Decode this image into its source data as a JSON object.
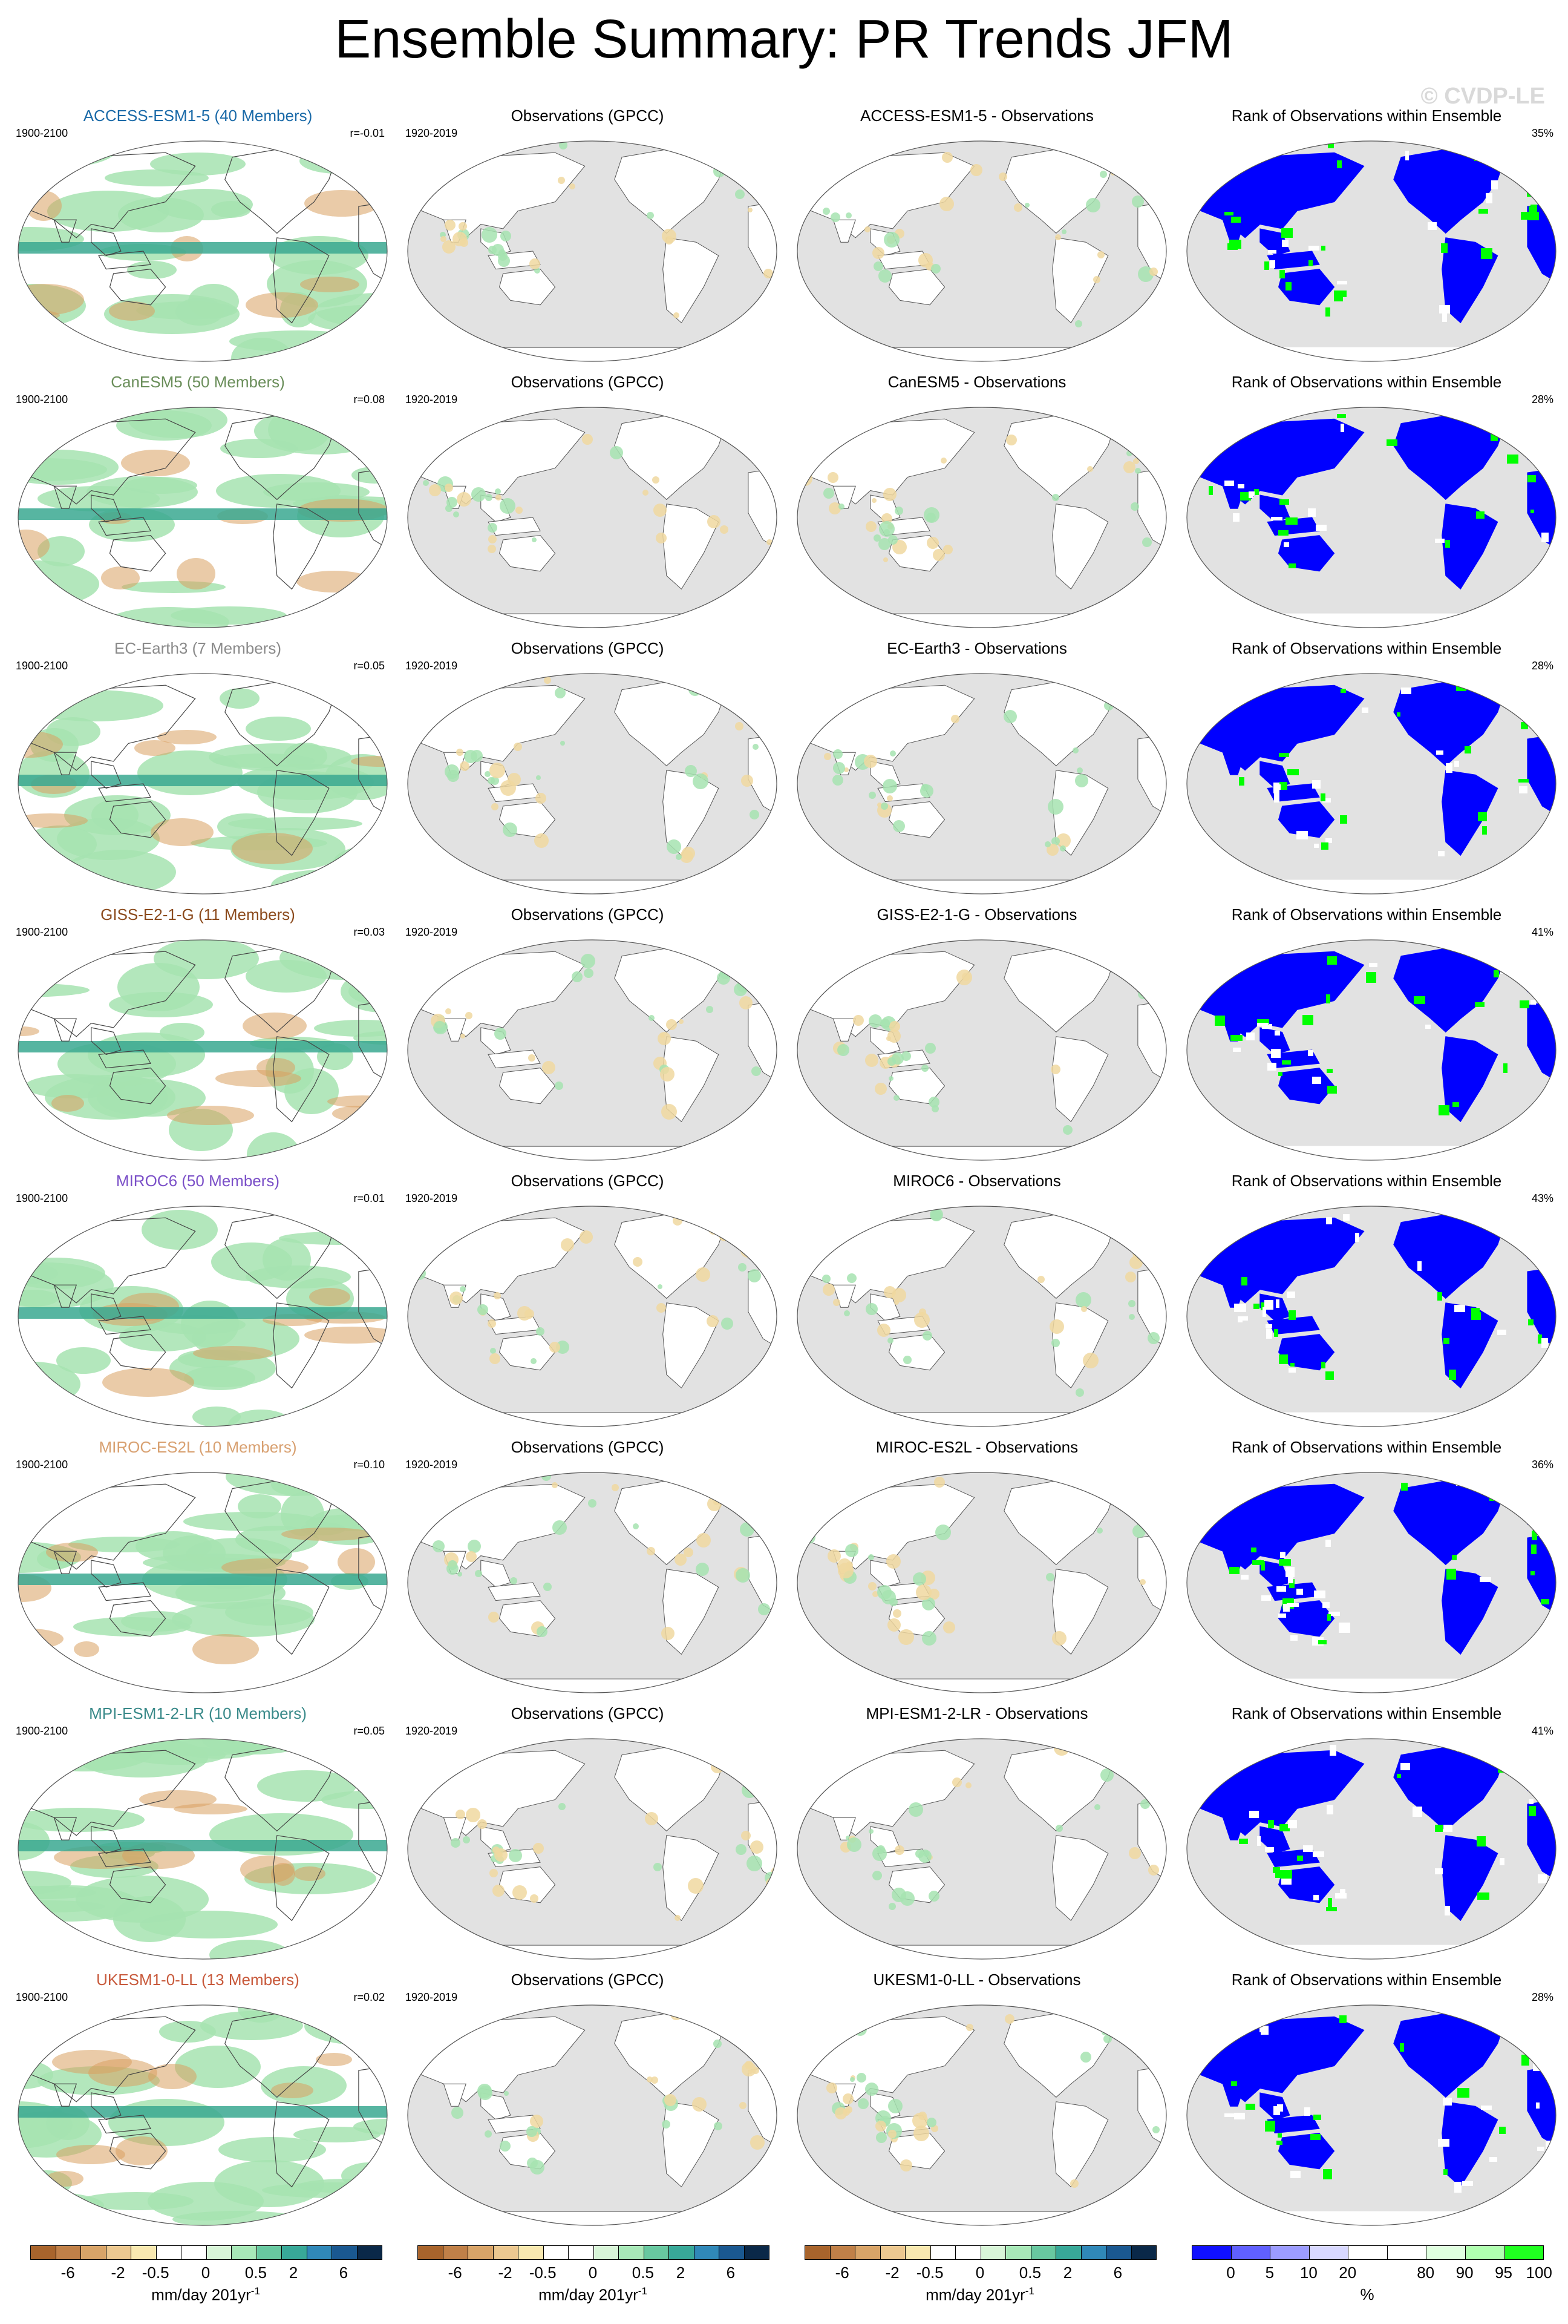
{
  "title": "Ensemble Summary: PR Trends JFM",
  "copyright": "© CVDP-LE",
  "obs_title": "Observations (GPCC)",
  "obs_period": "1920-2019",
  "model_period": "1900-2100",
  "rank_title": "Rank of Observations within Ensemble",
  "rows": [
    {
      "model_title": "ACCESS-ESM1-5 (40 Members)",
      "model_color": "#1a6aa8",
      "r": "r=-0.01",
      "diff_title": "ACCESS-ESM1-5 - Observations",
      "rank_pct": "35%"
    },
    {
      "model_title": "CanESM5 (50 Members)",
      "model_color": "#6a8e5a",
      "r": "r=0.08",
      "diff_title": "CanESM5 - Observations",
      "rank_pct": "28%"
    },
    {
      "model_title": "EC-Earth3 (7 Members)",
      "model_color": "#8a8a8a",
      "r": "r=0.05",
      "diff_title": "EC-Earth3 - Observations",
      "rank_pct": "28%"
    },
    {
      "model_title": "GISS-E2-1-G (11 Members)",
      "model_color": "#8b4a1c",
      "r": "r=0.03",
      "diff_title": "GISS-E2-1-G - Observations",
      "rank_pct": "41%"
    },
    {
      "model_title": "MIROC6 (50 Members)",
      "model_color": "#7b50c8",
      "r": "r=0.01",
      "diff_title": "MIROC6 - Observations",
      "rank_pct": "43%"
    },
    {
      "model_title": "MIROC-ES2L (10 Members)",
      "model_color": "#d8a070",
      "r": "r=0.10",
      "diff_title": "MIROC-ES2L - Observations",
      "rank_pct": "36%"
    },
    {
      "model_title": "MPI-ESM1-2-LR (10 Members)",
      "model_color": "#3a8a8a",
      "r": "r=0.05",
      "diff_title": "MPI-ESM1-2-LR - Observations",
      "rank_pct": "41%"
    },
    {
      "model_title": "UKESM1-0-LL (13 Members)",
      "model_color": "#c85a3c",
      "r": "r=0.02",
      "diff_title": "UKESM1-0-LL - Observations",
      "rank_pct": "28%"
    }
  ],
  "trend_colorbar": {
    "colors": [
      "#a8642c",
      "#c08048",
      "#d8a468",
      "#ecc890",
      "#f8e8b0",
      "#ffffff",
      "#ffffff",
      "#d8f5d8",
      "#a8e8b8",
      "#68c8a0",
      "#38a898",
      "#3088b8",
      "#1a5890",
      "#0a2848"
    ],
    "labels": [
      "-6",
      "-2",
      "-0.5",
      "0",
      "0.5",
      "2",
      "6"
    ],
    "units": "mm/day 201yr",
    "units_sup": "-1"
  },
  "rank_colorbar": {
    "colors": [
      "#1010ff",
      "#6060ff",
      "#9c9cff",
      "#d8d8ff",
      "#ffffff",
      "#ffffff",
      "#e0ffe0",
      "#b0ffb0",
      "#20ff20"
    ],
    "labels": [
      "0",
      "5",
      "10",
      "20",
      "80",
      "90",
      "95",
      "100"
    ],
    "units": "%"
  },
  "palette": {
    "ocean_gray": "#e2e2e2",
    "rank_blue": "#0000ff",
    "rank_green": "#00ff00",
    "pos_green": "#a6e3b0",
    "teal": "#3aa890",
    "brown": "#d8a060"
  }
}
